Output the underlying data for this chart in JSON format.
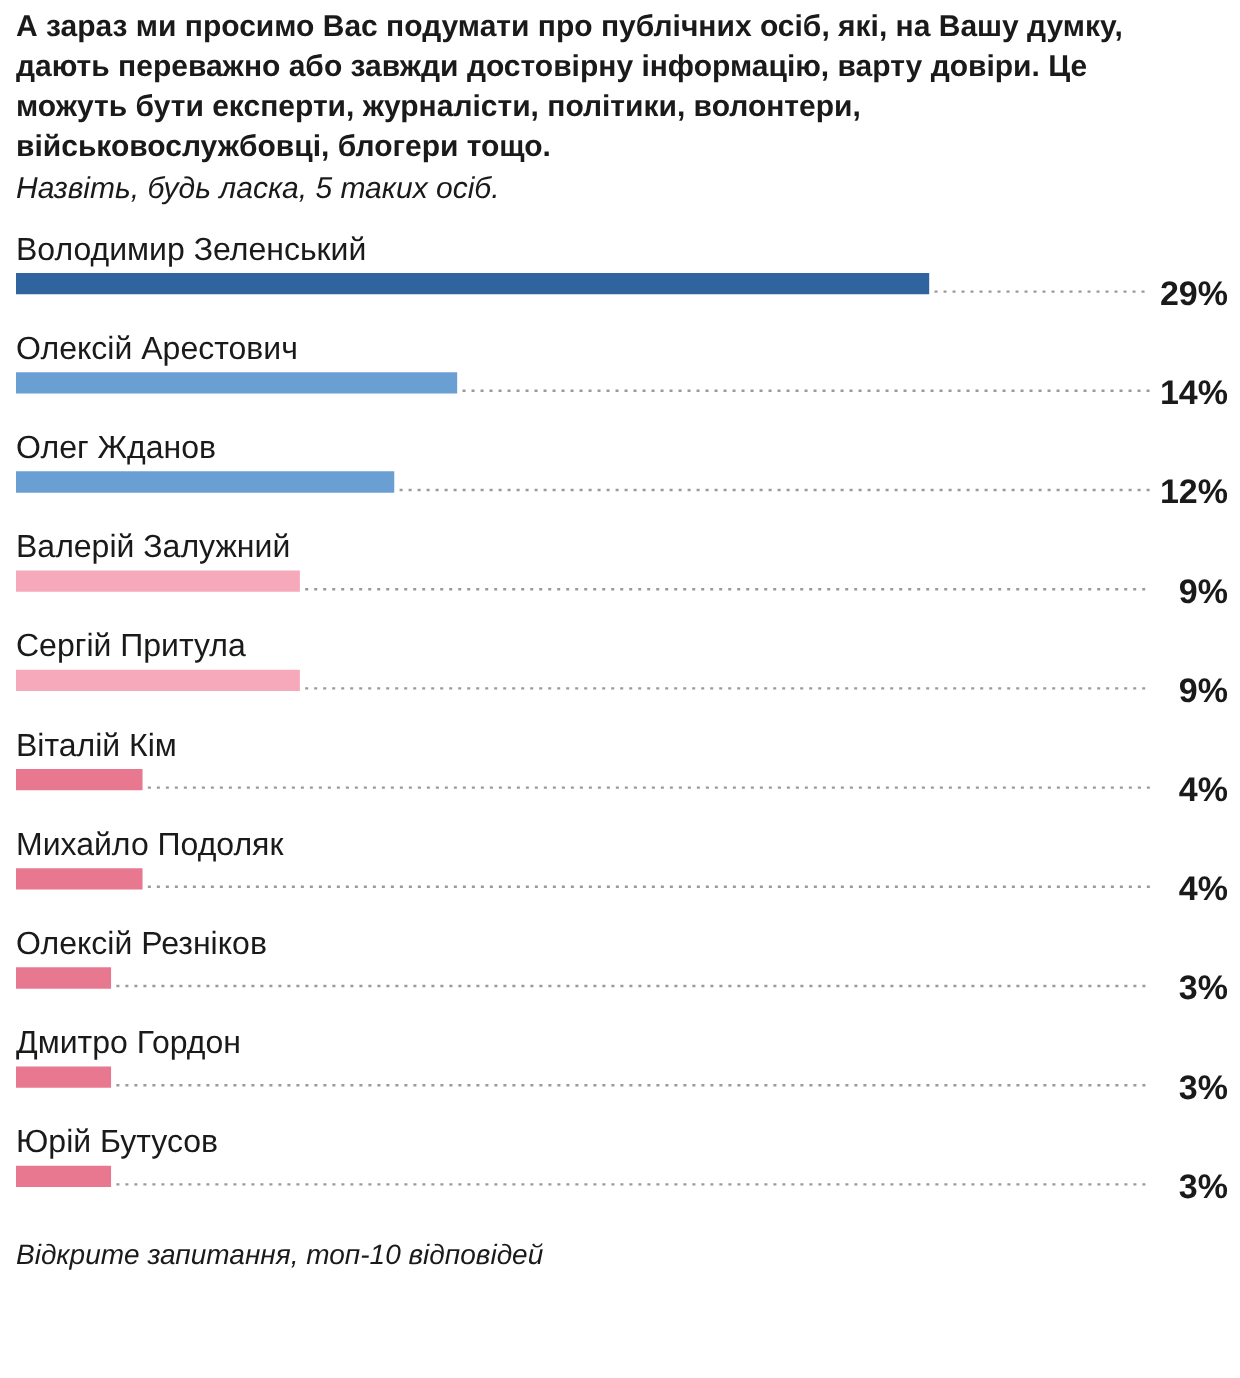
{
  "chart_data": {
    "type": "bar",
    "orientation": "horizontal",
    "title": "А зараз ми просимо Вас подумати про публічних осіб, які, на Вашу думку, дають переважно або завжди достовірну інформацію, варту довіри. Це можуть бути експерти, журналісти, політики, волонтери, військовослужбовці, блогери тощо.",
    "subtitle": "Назвіть, будь ласка, 5 таких осіб.",
    "categories": [
      "Володимир Зеленський",
      "Олексій Арестович",
      "Олег Жданов",
      "Валерій Залужний",
      "Сергій Притула",
      "Віталій Кім",
      "Михайло Подоляк",
      "Олексій Резніков",
      "Дмитро Гордон",
      "Юрій Бутусов"
    ],
    "values": [
      29,
      14,
      12,
      9,
      9,
      4,
      4,
      3,
      3,
      3
    ],
    "value_labels": [
      "29%",
      "14%",
      "12%",
      "9%",
      "9%",
      "4%",
      "4%",
      "3%",
      "3%",
      "3%"
    ],
    "colors": [
      "#2f649f",
      "#6a9fd4",
      "#6a9fd4",
      "#f5a9bb",
      "#f5a9bb",
      "#e87890",
      "#e87890",
      "#e87890",
      "#e87890",
      "#e87890"
    ],
    "tick_labels": "y",
    "legend": false,
    "annotations": [
      "Відкрите запитання, топ-10 відповідей"
    ]
  }
}
